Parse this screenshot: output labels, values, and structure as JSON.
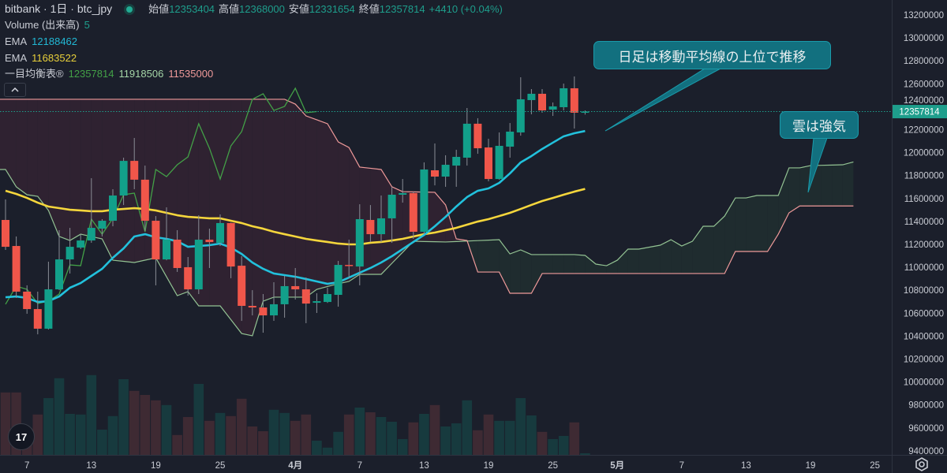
{
  "header": {
    "symbol": "bitbank · 1日 · btc_jpy",
    "open_label": "始値",
    "open": "12353404",
    "high_label": "高値",
    "high": "12368000",
    "low_label": "安値",
    "low": "12331654",
    "close_label": "終値",
    "close": "12357814",
    "change": "+4410 (+0.04%)"
  },
  "indicators": {
    "volume": {
      "label": "Volume (出来高)",
      "value": "5"
    },
    "ema_short": {
      "label": "EMA",
      "value": "12188462",
      "color": "#22c1dc"
    },
    "ema_long": {
      "label": "EMA",
      "value": "11683522",
      "color": "#f5d63c"
    },
    "ichimoku": {
      "label": "一目均衡表®",
      "lagging": "12357814",
      "span_a": "11918506",
      "span_b": "11535000"
    }
  },
  "callouts": {
    "ma_note": "日足は移動平均線の上位で推移",
    "cloud_note": "雲は強気"
  },
  "current_price_label": "12357814",
  "logo_text": "TV",
  "colors": {
    "background": "#1b1f2b",
    "up": "#12a08a",
    "down": "#f0564a",
    "vol_up": "#173a3e",
    "vol_down": "#3e2a33",
    "lagging": "#43a047",
    "span_a": "#93c393",
    "span_b": "#ef9a9a",
    "cloud_bull": "#1f2c2f",
    "cloud_bear": "#2f2231",
    "price_line": "#1e9e8c"
  },
  "chart_data": {
    "type": "candlestick",
    "price_axis": {
      "ylim": [
        9400000,
        13200000
      ],
      "ticks": [
        13200000,
        13000000,
        12800000,
        12600000,
        12400000,
        12200000,
        12000000,
        11800000,
        11600000,
        11400000,
        11200000,
        11000000,
        10800000,
        10600000,
        10400000,
        10200000,
        10000000,
        9800000,
        9600000,
        9400000
      ]
    },
    "time_axis": {
      "ticks": [
        {
          "label": "7",
          "date": "3/7"
        },
        {
          "label": "13",
          "date": "3/13"
        },
        {
          "label": "19",
          "date": "3/19"
        },
        {
          "label": "25",
          "date": "3/25"
        },
        {
          "label": "4月",
          "date": "4/1"
        },
        {
          "label": "7",
          "date": "4/7"
        },
        {
          "label": "13",
          "date": "4/13"
        },
        {
          "label": "19",
          "date": "4/19"
        },
        {
          "label": "25",
          "date": "4/25"
        },
        {
          "label": "5月",
          "date": "5/1"
        },
        {
          "label": "7",
          "date": "5/7"
        },
        {
          "label": "13",
          "date": "5/13"
        },
        {
          "label": "19",
          "date": "5/19"
        },
        {
          "label": "25",
          "date": "5/25"
        }
      ]
    },
    "candles": [
      {
        "d": "3/5",
        "o": 11413000,
        "h": 11592000,
        "l": 11152000,
        "c": 11179000,
        "v": 198
      },
      {
        "d": "3/6",
        "o": 11186000,
        "h": 11269000,
        "l": 10733000,
        "c": 10788000,
        "v": 198
      },
      {
        "d": "3/7",
        "o": 10788000,
        "h": 10843000,
        "l": 10595000,
        "c": 10636000,
        "v": 85
      },
      {
        "d": "3/8",
        "o": 10636000,
        "h": 10788000,
        "l": 10416000,
        "c": 10465000,
        "v": 128
      },
      {
        "d": "3/9",
        "o": 10465000,
        "h": 11049000,
        "l": 10458000,
        "c": 10808000,
        "v": 180
      },
      {
        "d": "3/10",
        "o": 10808000,
        "h": 11324000,
        "l": 10801000,
        "c": 11069000,
        "v": 243
      },
      {
        "d": "3/11",
        "o": 11069000,
        "h": 11344000,
        "l": 10946000,
        "c": 11179000,
        "v": 130
      },
      {
        "d": "3/12",
        "o": 11172000,
        "h": 11290000,
        "l": 11160000,
        "c": 11234000,
        "v": 128
      },
      {
        "d": "3/13",
        "o": 11234000,
        "h": 11777000,
        "l": 11214000,
        "c": 11344000,
        "v": 253
      },
      {
        "d": "3/14",
        "o": 11337000,
        "h": 11420000,
        "l": 11269000,
        "c": 11406000,
        "v": 80
      },
      {
        "d": "3/15",
        "o": 11406000,
        "h": 11681000,
        "l": 11358000,
        "c": 11626000,
        "v": 123
      },
      {
        "d": "3/16",
        "o": 11626000,
        "h": 11956000,
        "l": 11543000,
        "c": 11928000,
        "v": 240
      },
      {
        "d": "3/17",
        "o": 11928000,
        "h": 12128000,
        "l": 11681000,
        "c": 11764000,
        "v": 203
      },
      {
        "d": "3/18",
        "o": 11764000,
        "h": 11887000,
        "l": 11317000,
        "c": 11406000,
        "v": 190
      },
      {
        "d": "3/19",
        "o": 11406000,
        "h": 11447000,
        "l": 10843000,
        "c": 11069000,
        "v": 173
      },
      {
        "d": "3/20",
        "o": 11069000,
        "h": 11523000,
        "l": 11062000,
        "c": 11241000,
        "v": 158
      },
      {
        "d": "3/21",
        "o": 11241000,
        "h": 11324000,
        "l": 10960000,
        "c": 10994000,
        "v": 63
      },
      {
        "d": "3/22",
        "o": 11001000,
        "h": 11090000,
        "l": 10753000,
        "c": 10808000,
        "v": 120
      },
      {
        "d": "3/23",
        "o": 10808000,
        "h": 11454000,
        "l": 10767000,
        "c": 11241000,
        "v": 225
      },
      {
        "d": "3/24",
        "o": 11241000,
        "h": 11337000,
        "l": 10994000,
        "c": 11220000,
        "v": 108
      },
      {
        "d": "3/25",
        "o": 11214000,
        "h": 11461000,
        "l": 11186000,
        "c": 11386000,
        "v": 133
      },
      {
        "d": "3/26",
        "o": 11386000,
        "h": 11390000,
        "l": 10905000,
        "c": 11007000,
        "v": 123
      },
      {
        "d": "3/27",
        "o": 11014000,
        "h": 11097000,
        "l": 10533000,
        "c": 10664000,
        "v": 178
      },
      {
        "d": "3/28",
        "o": 10664000,
        "h": 10801000,
        "l": 10581000,
        "c": 10650000,
        "v": 90
      },
      {
        "d": "3/29",
        "o": 10650000,
        "h": 10767000,
        "l": 10430000,
        "c": 10581000,
        "v": 75
      },
      {
        "d": "3/30",
        "o": 10581000,
        "h": 10870000,
        "l": 10533000,
        "c": 10678000,
        "v": 143
      },
      {
        "d": "3/31",
        "o": 10678000,
        "h": 10925000,
        "l": 10561000,
        "c": 10836000,
        "v": 133
      },
      {
        "d": "4/1",
        "o": 10836000,
        "h": 10994000,
        "l": 10719000,
        "c": 10808000,
        "v": 108
      },
      {
        "d": "4/2",
        "o": 10808000,
        "h": 10911000,
        "l": 10513000,
        "c": 10684000,
        "v": 128
      },
      {
        "d": "4/3",
        "o": 10691000,
        "h": 10774000,
        "l": 10602000,
        "c": 10705000,
        "v": 45
      },
      {
        "d": "4/4",
        "o": 10698000,
        "h": 10822000,
        "l": 10690000,
        "c": 10767000,
        "v": 23
      },
      {
        "d": "4/5",
        "o": 10760000,
        "h": 11056000,
        "l": 10657000,
        "c": 11021000,
        "v": 73
      },
      {
        "d": "4/6",
        "o": 11021000,
        "h": 11241000,
        "l": 10905000,
        "c": 11014000,
        "v": 128
      },
      {
        "d": "4/7",
        "o": 11007000,
        "h": 11550000,
        "l": 10843000,
        "c": 11420000,
        "v": 150
      },
      {
        "d": "4/8",
        "o": 11413000,
        "h": 11543000,
        "l": 11220000,
        "c": 11289000,
        "v": 135
      },
      {
        "d": "4/9",
        "o": 11289000,
        "h": 11626000,
        "l": 11220000,
        "c": 11427000,
        "v": 120
      },
      {
        "d": "4/10",
        "o": 11427000,
        "h": 11702000,
        "l": 11214000,
        "c": 11633000,
        "v": 105
      },
      {
        "d": "4/11",
        "o": 11633000,
        "h": 11770000,
        "l": 11564000,
        "c": 11647000,
        "v": 50
      },
      {
        "d": "4/12",
        "o": 11647000,
        "h": 11660000,
        "l": 11248000,
        "c": 11310000,
        "v": 103
      },
      {
        "d": "4/13",
        "o": 11310000,
        "h": 11915000,
        "l": 11289000,
        "c": 11853000,
        "v": 130
      },
      {
        "d": "4/14",
        "o": 11846000,
        "h": 12080000,
        "l": 11715000,
        "c": 11791000,
        "v": 158
      },
      {
        "d": "4/15",
        "o": 11791000,
        "h": 11977000,
        "l": 11702000,
        "c": 11894000,
        "v": 90
      },
      {
        "d": "4/16",
        "o": 11887000,
        "h": 12025000,
        "l": 11702000,
        "c": 11963000,
        "v": 100
      },
      {
        "d": "4/17",
        "o": 11956000,
        "h": 12389000,
        "l": 11887000,
        "c": 12252000,
        "v": 173
      },
      {
        "d": "4/18",
        "o": 12252000,
        "h": 12300000,
        "l": 11990000,
        "c": 12038000,
        "v": 78
      },
      {
        "d": "4/19",
        "o": 12045000,
        "h": 12121000,
        "l": 11750000,
        "c": 11770000,
        "v": 128
      },
      {
        "d": "4/20",
        "o": 11770000,
        "h": 12176000,
        "l": 11764000,
        "c": 12059000,
        "v": 108
      },
      {
        "d": "4/21",
        "o": 12052000,
        "h": 12258000,
        "l": 11956000,
        "c": 12183000,
        "v": 108
      },
      {
        "d": "4/22",
        "o": 12176000,
        "h": 12657000,
        "l": 12148000,
        "c": 12465000,
        "v": 180
      },
      {
        "d": "4/23",
        "o": 12458000,
        "h": 12554000,
        "l": 12334000,
        "c": 12513000,
        "v": 125
      },
      {
        "d": "4/24",
        "o": 12513000,
        "h": 12554000,
        "l": 12348000,
        "c": 12368000,
        "v": 73
      },
      {
        "d": "4/25",
        "o": 12375000,
        "h": 12437000,
        "l": 12320000,
        "c": 12403000,
        "v": 50
      },
      {
        "d": "4/26",
        "o": 12396000,
        "h": 12602000,
        "l": 12368000,
        "c": 12561000,
        "v": 60
      },
      {
        "d": "4/27",
        "o": 12561000,
        "h": 12664000,
        "l": 12210000,
        "c": 12348000,
        "v": 103
      },
      {
        "d": "4/28",
        "o": 12353404,
        "h": 12368000,
        "l": 12331654,
        "c": 12357814,
        "v": 5
      }
    ],
    "ema_short": [
      10739000,
      10746000,
      10733000,
      10698000,
      10705000,
      10746000,
      10822000,
      10863000,
      10925000,
      10987000,
      11083000,
      11165000,
      11269000,
      11289000,
      11262000,
      11248000,
      11227000,
      11179000,
      11186000,
      11193000,
      11207000,
      11172000,
      11117000,
      11042000,
      10987000,
      10946000,
      10932000,
      10918000,
      10898000,
      10877000,
      10856000,
      10870000,
      10911000,
      10953000,
      10994000,
      11042000,
      11097000,
      11159000,
      11221000,
      11282000,
      11358000,
      11440000,
      11530000,
      11612000,
      11667000,
      11688000,
      11736000,
      11819000,
      11915000,
      11970000,
      12032000,
      12087000,
      12142000,
      12169000,
      12188462
    ],
    "ema_long": [
      11667000,
      11640000,
      11605000,
      11564000,
      11530000,
      11516000,
      11502000,
      11496000,
      11489000,
      11489000,
      11502000,
      11509000,
      11516000,
      11509000,
      11496000,
      11475000,
      11454000,
      11440000,
      11434000,
      11427000,
      11427000,
      11406000,
      11386000,
      11358000,
      11337000,
      11310000,
      11289000,
      11269000,
      11248000,
      11234000,
      11221000,
      11207000,
      11200000,
      11200000,
      11214000,
      11221000,
      11234000,
      11248000,
      11269000,
      11289000,
      11303000,
      11324000,
      11344000,
      11372000,
      11399000,
      11420000,
      11447000,
      11475000,
      11509000,
      11544000,
      11578000,
      11605000,
      11633000,
      11660000,
      11683522
    ],
    "ichimoku": {
      "displacement": 26,
      "span_a": [
        [
          "3/5",
          11853000
        ],
        [
          "3/6",
          11702000
        ],
        [
          "3/7",
          11633000
        ],
        [
          "3/8",
          11619000
        ],
        [
          "3/9",
          11496000
        ],
        [
          "3/10",
          11269000
        ],
        [
          "3/11",
          11234000
        ],
        [
          "3/12",
          11289000
        ],
        [
          "3/14",
          11248000
        ],
        [
          "3/15",
          11062000
        ],
        [
          "3/17",
          11042000
        ],
        [
          "3/19",
          11083000
        ],
        [
          "3/21",
          10753000
        ],
        [
          "3/22",
          10788000
        ],
        [
          "3/23",
          10664000
        ],
        [
          "3/25",
          10664000
        ],
        [
          "3/27",
          10423000
        ],
        [
          "3/28",
          10403000
        ],
        [
          "3/29",
          10705000
        ],
        [
          "3/30",
          10740000
        ],
        [
          "4/2",
          10740000
        ],
        [
          "4/3",
          10808000
        ],
        [
          "4/5",
          10857000
        ],
        [
          "4/6",
          10877000
        ],
        [
          "4/7",
          10939000
        ],
        [
          "4/9",
          10939000
        ],
        [
          "4/12",
          11227000
        ],
        [
          "4/15",
          11221000
        ],
        [
          "4/20",
          11241000
        ],
        [
          "4/21",
          11117000
        ],
        [
          "4/22",
          11152000
        ],
        [
          "4/23",
          11111000
        ],
        [
          "4/27",
          11111000
        ],
        [
          "4/28",
          11104000
        ],
        [
          "4/29",
          11028000
        ],
        [
          "4/30",
          11014000
        ],
        [
          "5/1",
          11062000
        ],
        [
          "5/2",
          11159000
        ],
        [
          "5/3",
          11159000
        ],
        [
          "5/5",
          11193000
        ],
        [
          "5/6",
          11241000
        ],
        [
          "5/7",
          11186000
        ],
        [
          "5/8",
          11227000
        ],
        [
          "5/9",
          11358000
        ],
        [
          "5/10",
          11358000
        ],
        [
          "5/11",
          11447000
        ],
        [
          "5/12",
          11605000
        ],
        [
          "5/13",
          11605000
        ],
        [
          "5/14",
          11626000
        ],
        [
          "5/16",
          11626000
        ],
        [
          "5/17",
          11867000
        ],
        [
          "5/18",
          11867000
        ],
        [
          "5/19",
          11887000
        ],
        [
          "5/22",
          11894000
        ],
        [
          "5/23",
          11918506
        ]
      ],
      "span_b": [
        [
          "3/5",
          12465000
        ],
        [
          "3/31",
          12465000
        ],
        [
          "4/1",
          12423000
        ],
        [
          "4/2",
          12320000
        ],
        [
          "4/4",
          12252000
        ],
        [
          "4/5",
          12093000
        ],
        [
          "4/6",
          12045000
        ],
        [
          "4/7",
          11874000
        ],
        [
          "4/9",
          11853000
        ],
        [
          "4/10",
          11702000
        ],
        [
          "4/11",
          11660000
        ],
        [
          "4/14",
          11654000
        ],
        [
          "4/15",
          11544000
        ],
        [
          "4/16",
          11248000
        ],
        [
          "4/17",
          11234000
        ],
        [
          "4/18",
          10959000
        ],
        [
          "4/20",
          10959000
        ],
        [
          "4/21",
          10774000
        ],
        [
          "4/23",
          10774000
        ],
        [
          "4/24",
          10946000
        ],
        [
          "5/11",
          10946000
        ],
        [
          "5/12",
          11138000
        ],
        [
          "5/15",
          11138000
        ],
        [
          "5/16",
          11289000
        ],
        [
          "5/17",
          11475000
        ],
        [
          "5/18",
          11535000
        ],
        [
          "5/23",
          11535000
        ]
      ]
    }
  }
}
